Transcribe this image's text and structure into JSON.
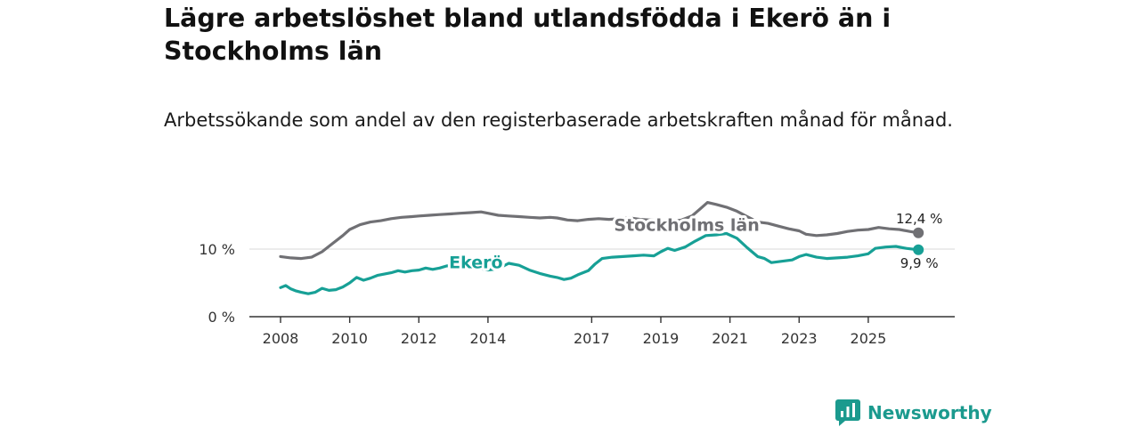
{
  "header": {
    "title": "Lägre arbetslöshet bland utlandsfödda i Ekerö än i Stockholms län",
    "subtitle": "Arbetssökande som andel av den registerbaserade arbetskraften månad för månad."
  },
  "brand": {
    "name": "Newsworthy",
    "icon": "newsworthy-logo-icon"
  },
  "colors": {
    "stockholm": "#707074",
    "ekero": "#17a096",
    "axis": "#333333",
    "grid": "#d9d9d9"
  },
  "chart_data": {
    "type": "line",
    "title": "Lägre arbetslöshet bland utlandsfödda i Ekerö än i Stockholms län",
    "subtitle": "Arbetssökande som andel av den registerbaserade arbetskraften månad för månad.",
    "xlabel": "",
    "ylabel": "",
    "xlim": [
      2008.0,
      2026.6
    ],
    "ylim": [
      0,
      17
    ],
    "x_ticks": [
      {
        "value": 2008,
        "label": "2008"
      },
      {
        "value": 2010,
        "label": "2010"
      },
      {
        "value": 2012,
        "label": "2012"
      },
      {
        "value": 2014,
        "label": "2014"
      },
      {
        "value": 2017,
        "label": "2017"
      },
      {
        "value": 2019,
        "label": "2019"
      },
      {
        "value": 2021,
        "label": "2021"
      },
      {
        "value": 2023,
        "label": "2023"
      },
      {
        "value": 2025,
        "label": "2025"
      }
    ],
    "y_ticks": [
      {
        "value": 0,
        "label": "0 %"
      },
      {
        "value": 10,
        "label": "10 %"
      }
    ],
    "gridlines": [
      10
    ],
    "series": [
      {
        "name": "Stockholms län",
        "color": "#707074",
        "end_label": "12,4 %",
        "points": [
          [
            2008.0,
            8.9
          ],
          [
            2008.3,
            8.7
          ],
          [
            2008.6,
            8.6
          ],
          [
            2008.9,
            8.8
          ],
          [
            2009.2,
            9.6
          ],
          [
            2009.5,
            10.8
          ],
          [
            2009.8,
            12.0
          ],
          [
            2010.0,
            12.9
          ],
          [
            2010.3,
            13.6
          ],
          [
            2010.6,
            14.0
          ],
          [
            2010.9,
            14.2
          ],
          [
            2011.2,
            14.5
          ],
          [
            2011.5,
            14.7
          ],
          [
            2011.8,
            14.8
          ],
          [
            2012.0,
            14.9
          ],
          [
            2012.3,
            15.0
          ],
          [
            2012.6,
            15.1
          ],
          [
            2012.9,
            15.2
          ],
          [
            2013.2,
            15.3
          ],
          [
            2013.5,
            15.4
          ],
          [
            2013.8,
            15.5
          ],
          [
            2014.0,
            15.3
          ],
          [
            2014.3,
            15.0
          ],
          [
            2014.6,
            14.9
          ],
          [
            2014.9,
            14.8
          ],
          [
            2015.2,
            14.7
          ],
          [
            2015.5,
            14.6
          ],
          [
            2015.8,
            14.7
          ],
          [
            2016.0,
            14.6
          ],
          [
            2016.3,
            14.3
          ],
          [
            2016.6,
            14.2
          ],
          [
            2016.9,
            14.4
          ],
          [
            2017.2,
            14.5
          ],
          [
            2017.5,
            14.4
          ],
          [
            2017.8,
            14.5
          ],
          [
            2018.1,
            14.6
          ],
          [
            2018.4,
            14.4
          ],
          [
            2018.7,
            14.3
          ],
          [
            2019.0,
            14.2
          ],
          [
            2019.3,
            14.1
          ],
          [
            2019.6,
            14.3
          ],
          [
            2019.9,
            14.9
          ],
          [
            2020.15,
            16.0
          ],
          [
            2020.35,
            16.9
          ],
          [
            2020.6,
            16.6
          ],
          [
            2020.9,
            16.2
          ],
          [
            2021.2,
            15.6
          ],
          [
            2021.5,
            14.8
          ],
          [
            2021.8,
            14.0
          ],
          [
            2022.1,
            13.8
          ],
          [
            2022.4,
            13.4
          ],
          [
            2022.7,
            13.0
          ],
          [
            2023.0,
            12.7
          ],
          [
            2023.2,
            12.2
          ],
          [
            2023.5,
            12.0
          ],
          [
            2023.8,
            12.1
          ],
          [
            2024.1,
            12.3
          ],
          [
            2024.4,
            12.6
          ],
          [
            2024.7,
            12.8
          ],
          [
            2025.0,
            12.9
          ],
          [
            2025.3,
            13.2
          ],
          [
            2025.6,
            13.0
          ],
          [
            2025.9,
            12.9
          ],
          [
            2026.2,
            12.6
          ],
          [
            2026.45,
            12.4
          ]
        ]
      },
      {
        "name": "Ekerö",
        "color": "#17a096",
        "end_label": "9,9 %",
        "points": [
          [
            2008.0,
            4.3
          ],
          [
            2008.15,
            4.6
          ],
          [
            2008.3,
            4.1
          ],
          [
            2008.45,
            3.8
          ],
          [
            2008.6,
            3.6
          ],
          [
            2008.8,
            3.4
          ],
          [
            2009.0,
            3.6
          ],
          [
            2009.2,
            4.2
          ],
          [
            2009.4,
            3.9
          ],
          [
            2009.6,
            4.0
          ],
          [
            2009.8,
            4.4
          ],
          [
            2010.0,
            5.0
          ],
          [
            2010.2,
            5.8
          ],
          [
            2010.4,
            5.4
          ],
          [
            2010.6,
            5.7
          ],
          [
            2010.8,
            6.1
          ],
          [
            2011.0,
            6.3
          ],
          [
            2011.2,
            6.5
          ],
          [
            2011.4,
            6.8
          ],
          [
            2011.6,
            6.6
          ],
          [
            2011.8,
            6.8
          ],
          [
            2012.0,
            6.9
          ],
          [
            2012.2,
            7.2
          ],
          [
            2012.4,
            7.0
          ],
          [
            2012.6,
            7.2
          ],
          [
            2012.8,
            7.5
          ],
          [
            2013.0,
            7.6
          ],
          [
            2013.2,
            7.8
          ],
          [
            2013.5,
            7.5
          ],
          [
            2013.8,
            7.1
          ],
          [
            2014.0,
            6.9
          ],
          [
            2014.3,
            7.1
          ],
          [
            2014.6,
            7.9
          ],
          [
            2014.9,
            7.6
          ],
          [
            2015.2,
            6.9
          ],
          [
            2015.5,
            6.4
          ],
          [
            2015.8,
            6.0
          ],
          [
            2016.0,
            5.8
          ],
          [
            2016.2,
            5.5
          ],
          [
            2016.4,
            5.7
          ],
          [
            2016.6,
            6.2
          ],
          [
            2016.9,
            6.8
          ],
          [
            2017.1,
            7.8
          ],
          [
            2017.3,
            8.6
          ],
          [
            2017.6,
            8.8
          ],
          [
            2017.9,
            8.9
          ],
          [
            2018.2,
            9.0
          ],
          [
            2018.5,
            9.1
          ],
          [
            2018.8,
            9.0
          ],
          [
            2019.0,
            9.6
          ],
          [
            2019.2,
            10.1
          ],
          [
            2019.4,
            9.8
          ],
          [
            2019.7,
            10.3
          ],
          [
            2020.0,
            11.2
          ],
          [
            2020.3,
            12.0
          ],
          [
            2020.6,
            12.1
          ],
          [
            2020.9,
            12.3
          ],
          [
            2021.2,
            11.6
          ],
          [
            2021.5,
            10.2
          ],
          [
            2021.8,
            8.9
          ],
          [
            2022.0,
            8.6
          ],
          [
            2022.2,
            8.0
          ],
          [
            2022.5,
            8.2
          ],
          [
            2022.8,
            8.4
          ],
          [
            2023.0,
            8.9
          ],
          [
            2023.2,
            9.2
          ],
          [
            2023.5,
            8.8
          ],
          [
            2023.8,
            8.6
          ],
          [
            2024.1,
            8.7
          ],
          [
            2024.4,
            8.8
          ],
          [
            2024.7,
            9.0
          ],
          [
            2025.0,
            9.3
          ],
          [
            2025.2,
            10.1
          ],
          [
            2025.5,
            10.3
          ],
          [
            2025.8,
            10.4
          ],
          [
            2026.1,
            10.1
          ],
          [
            2026.45,
            9.9
          ]
        ]
      }
    ]
  }
}
